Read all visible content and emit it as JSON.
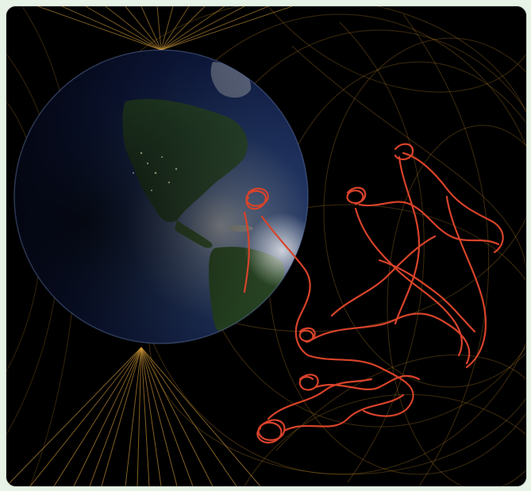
{
  "image": {
    "subject": "earth-magnetic-field-visualization",
    "colors": {
      "background": "#000000",
      "page_background": "#e6f3e6",
      "field_lines": "#c8922e",
      "particle_path": "#d8432a",
      "ocean": "#1f3a73",
      "land": "#3f6a33",
      "night_side": "#0a0f2a"
    }
  }
}
